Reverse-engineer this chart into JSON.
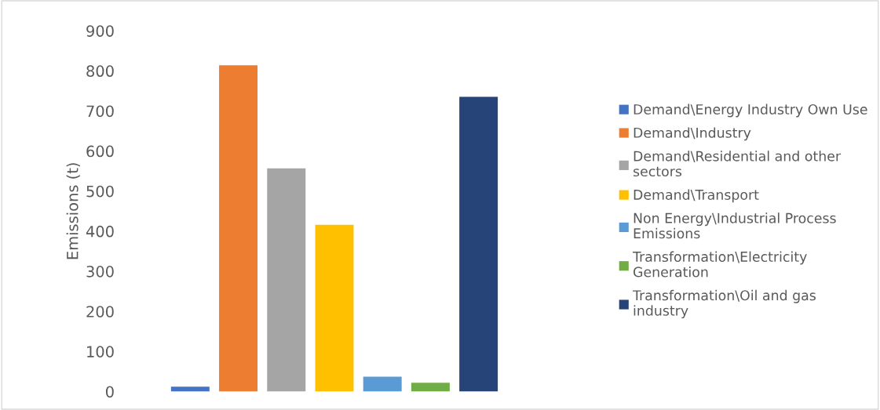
{
  "chart_data": {
    "type": "bar",
    "ylabel": "Emissions (t)",
    "categories": [
      null
    ],
    "series": [
      {
        "name": "Demand\\Energy Industry Own Use",
        "color": "#4472c4",
        "values": [
          12
        ]
      },
      {
        "name": "Demand\\Industry",
        "color": "#ed7d31",
        "values": [
          814
        ]
      },
      {
        "name": "Demand\\Residential and other\nsectors",
        "color": "#a5a5a5",
        "values": [
          557
        ]
      },
      {
        "name": "Demand\\Transport",
        "color": "#ffc000",
        "values": [
          416
        ]
      },
      {
        "name": "Non Energy\\Industrial Process\nEmissions",
        "color": "#5b9bd5",
        "values": [
          37
        ]
      },
      {
        "name": "Transformation\\Electricity\nGeneration",
        "color": "#70ad47",
        "values": [
          22
        ]
      },
      {
        "name": "Transformation\\Oil and gas\nindustry",
        "color": "#264478",
        "values": [
          735
        ]
      }
    ],
    "ylim": [
      0,
      900
    ],
    "yticks": [
      0,
      100,
      200,
      300,
      400,
      500,
      600,
      700,
      800,
      900
    ],
    "grid": false,
    "legend": "right"
  }
}
